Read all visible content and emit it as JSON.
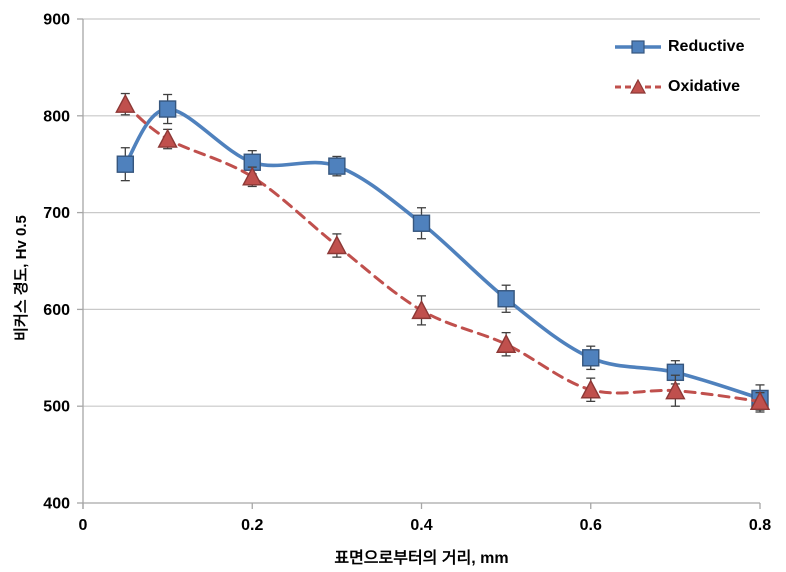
{
  "chart_data": {
    "type": "line",
    "title": "",
    "xlabel": "표면으로부터의 거리, mm",
    "ylabel": "비커스 경도, Hv 0.5",
    "x": [
      0.05,
      0.1,
      0.2,
      0.3,
      0.4,
      0.5,
      0.6,
      0.7,
      0.8
    ],
    "series": [
      {
        "name": "Reductive",
        "color": "#4F81BD",
        "marker_border": "#36567E",
        "marker": "square",
        "line_style": "solid",
        "values": [
          750,
          807,
          752,
          748,
          689,
          611,
          550,
          535,
          508
        ],
        "errors": [
          17,
          15,
          12,
          10,
          16,
          14,
          12,
          12,
          14
        ]
      },
      {
        "name": "Oxidative",
        "color": "#C0504D",
        "marker_border": "#8C3836",
        "marker": "triangle",
        "line_style": "dashed",
        "values": [
          812,
          776,
          737,
          666,
          599,
          564,
          517,
          516,
          505
        ],
        "errors": [
          11,
          10,
          10,
          12,
          15,
          12,
          12,
          16,
          9
        ]
      }
    ],
    "xlim": [
      0,
      0.8
    ],
    "ylim": [
      400,
      900
    ],
    "x_ticks": [
      "0",
      "0.2",
      "0.4",
      "0.6",
      "0.8"
    ],
    "x_tick_values": [
      0,
      0.2,
      0.4,
      0.6,
      0.8
    ],
    "y_ticks": [
      "400",
      "500",
      "600",
      "700",
      "800",
      "900"
    ],
    "y_tick_values": [
      400,
      500,
      600,
      700,
      800,
      900
    ],
    "grid": "horizontal-only",
    "legend_position": "top-right-inside",
    "colors": {
      "background": "#FFFFFF",
      "grid": "#C9C9C9",
      "axis": "#A6A6A6",
      "error_bar": "#404040",
      "text": "#000000"
    }
  }
}
